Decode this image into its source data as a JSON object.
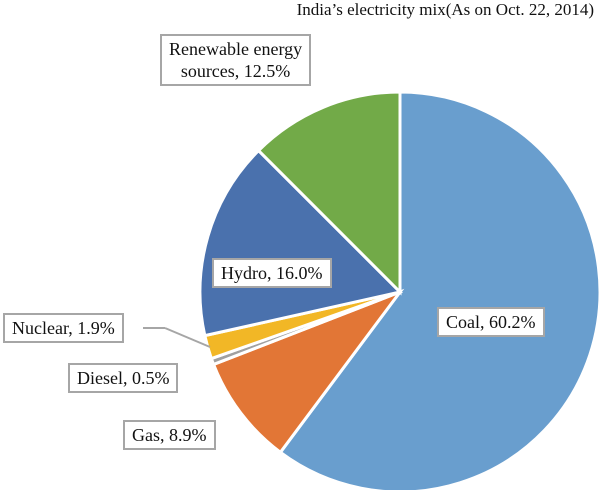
{
  "chart_data": {
    "type": "pie",
    "title": "India’s electricity mix(As on Oct. 22, 2014)",
    "slices": [
      {
        "name": "Coal",
        "value": 60.2,
        "label": "Coal, 60.2%",
        "color": "#699ece"
      },
      {
        "name": "Gas",
        "value": 8.9,
        "label": "Gas, 8.9%",
        "color": "#e27636"
      },
      {
        "name": "Diesel",
        "value": 0.5,
        "label": "Diesel, 0.5%",
        "color": "#a0a0a0"
      },
      {
        "name": "Nuclear",
        "value": 1.9,
        "label": "Nuclear, 1.9%",
        "color": "#f2b726"
      },
      {
        "name": "Hydro",
        "value": 16.0,
        "label": "Hydro, 16.0%",
        "color": "#4a71ad"
      },
      {
        "name": "Renewable energy sources",
        "value": 12.5,
        "label_line1": "Renewable energy",
        "label_line2": "sources, 12.5%",
        "color": "#72aa48"
      }
    ],
    "start": "top",
    "direction": "clockwise",
    "legend": "none"
  }
}
